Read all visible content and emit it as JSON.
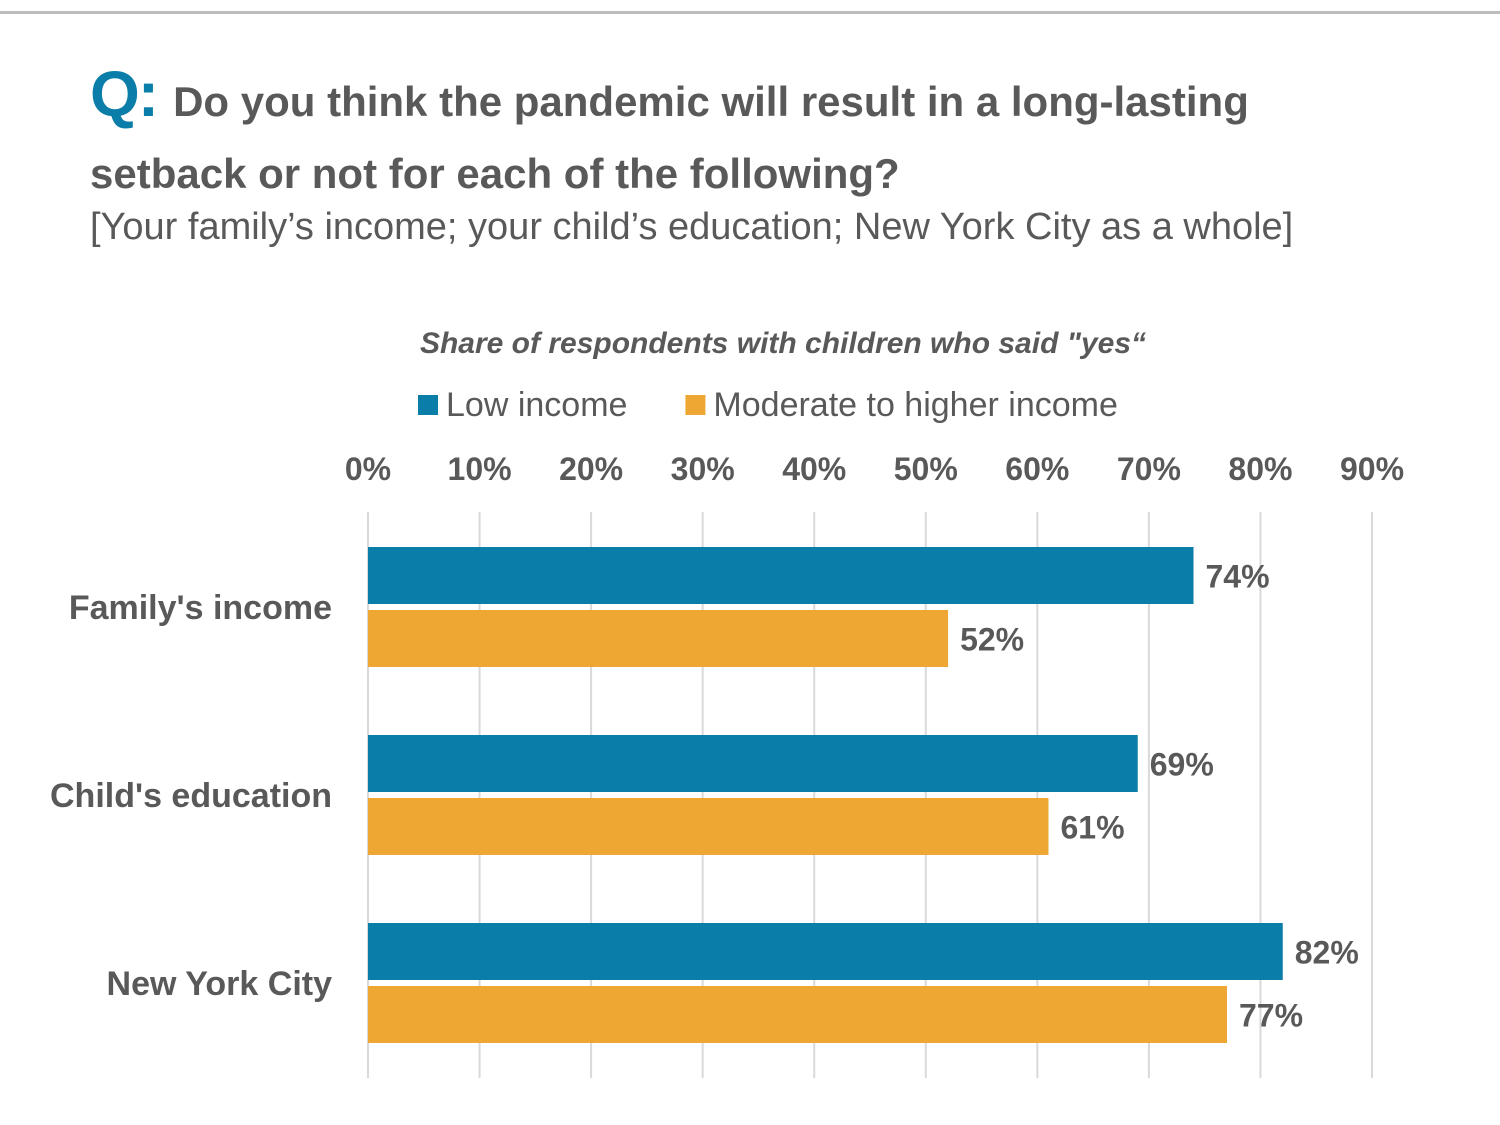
{
  "header": {
    "question_marker": "Q:",
    "question_line1": "Do you think the pandemic will result in a long-lasting",
    "question_line2": "setback or not for each of the following?",
    "question_sub": "[Your family’s income; your child’s education; New York City as a whole]"
  },
  "chart_data": {
    "type": "bar",
    "orientation": "horizontal",
    "title": "Share of respondents with children who said \"yes“",
    "categories": [
      "Family's income",
      "Child's education",
      "New York City"
    ],
    "series": [
      {
        "name": "Low income",
        "color": "#0a7ea8",
        "values": [
          74,
          69,
          82
        ],
        "labels": [
          "74%",
          "69%",
          "82%"
        ]
      },
      {
        "name": "Moderate to higher income",
        "color": "#eea733",
        "values": [
          52,
          61,
          77
        ],
        "labels": [
          "52%",
          "61%",
          "77%"
        ]
      }
    ],
    "xlim": [
      0,
      90
    ],
    "xticks": [
      0,
      10,
      20,
      30,
      40,
      50,
      60,
      70,
      80,
      90
    ],
    "xtick_labels": [
      "0%",
      "10%",
      "20%",
      "30%",
      "40%",
      "50%",
      "60%",
      "70%",
      "80%",
      "90%"
    ],
    "x_axis_position": "top",
    "grid": true,
    "legend_position": "top"
  }
}
